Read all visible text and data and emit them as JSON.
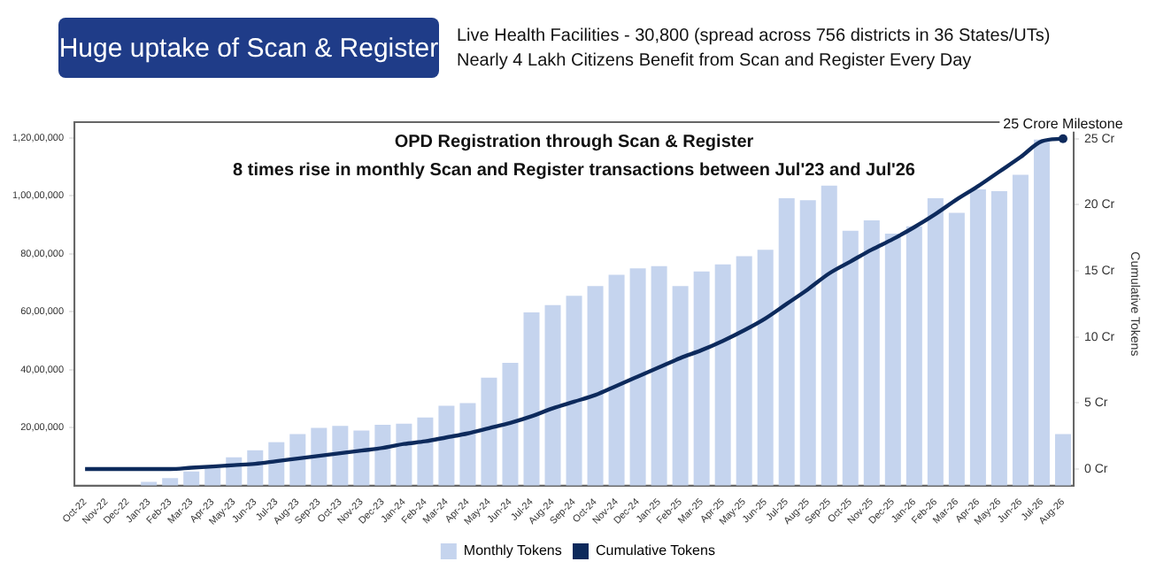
{
  "chart_data": {
    "type": "bar",
    "title": "OPD Registration through Scan & Register",
    "subtitle": "8 times rise in monthly Scan and Register transactions between Jul'23 and Jul'26",
    "annotations": [
      "Huge uptake of Scan & Register",
      "Live Health Facilities - 30,800 (spread across 756 districts in 36 States/UTs)",
      "Nearly 4 Lakh Citizens Benefit from Scan and Register Every Day",
      "25 Crore Milestone"
    ],
    "categories": [
      "Oct-22",
      "Nov-22",
      "Dec-22",
      "Jan-23",
      "Feb-23",
      "Mar-23",
      "Apr-23",
      "May-23",
      "Jun-23",
      "Jul-23",
      "Aug-23",
      "Sep-23",
      "Oct-23",
      "Nov-23",
      "Dec-23",
      "Jan-24",
      "Feb-24",
      "Mar-24",
      "Apr-24",
      "May-24",
      "Jun-24",
      "Jul-24",
      "Aug-24",
      "Sep-24",
      "Oct-24",
      "Nov-24",
      "Dec-24",
      "Jan-25",
      "Feb-25",
      "Mar-25",
      "Apr-25",
      "May-25",
      "Jun-25",
      "Jul-25",
      "Aug-25",
      "Sep-25",
      "Oct-25",
      "Nov-25",
      "Dec-25",
      "Jan-26",
      "Feb-26",
      "Mar-26",
      "Apr-26",
      "May-26",
      "Jun-26",
      "Jul-26",
      "Aug-26"
    ],
    "series": [
      {
        "name": "Monthly Tokens",
        "color": "#c5d4ee",
        "values": [
          0,
          0,
          null,
          130000,
          260000,
          490000,
          600000,
          980000,
          1220000,
          1500000,
          1780000,
          1990000,
          2060000,
          1900000,
          2100000,
          2140000,
          2350000,
          2760000,
          2850000,
          3730000,
          4240000,
          5980000,
          6230000,
          6550000,
          6890000,
          7280000,
          7500000,
          7580000,
          6890000,
          7390000,
          7640000,
          7920000,
          8140000,
          9920000,
          9850000,
          10360000,
          8800000,
          9160000,
          8700000,
          8950000,
          9920000,
          9420000,
          10230000,
          10170000,
          10730000,
          11950000,
          1780000
        ]
      },
      {
        "name": "Cumulative Tokens",
        "type": "line",
        "axis": "y2",
        "color": "#0d2a5c",
        "values": [
          0,
          0,
          0,
          0,
          0,
          0.1,
          0.2,
          0.3,
          0.4,
          0.6,
          0.8,
          1.0,
          1.2,
          1.4,
          1.6,
          1.9,
          2.1,
          2.4,
          2.7,
          3.1,
          3.5,
          4.0,
          4.6,
          5.1,
          5.6,
          6.3,
          7.0,
          7.7,
          8.4,
          9.0,
          9.7,
          10.5,
          11.4,
          12.5,
          13.6,
          14.8,
          15.7,
          16.6,
          17.4,
          18.3,
          19.3,
          20.4,
          21.4,
          22.5,
          23.6,
          24.8,
          25.0
        ]
      }
    ],
    "ylim": [
      0,
      12550000
    ],
    "yticks": [
      {
        "value": 2000000,
        "label": "20,00,000"
      },
      {
        "value": 4000000,
        "label": "40,00,000"
      },
      {
        "value": 6000000,
        "label": "60,00,000"
      },
      {
        "value": 8000000,
        "label": "80,00,000"
      },
      {
        "value": 10000000,
        "label": "1,00,00,000"
      },
      {
        "value": 12000000,
        "label": "1,20,00,000"
      }
    ],
    "y2lim": [
      -1.25,
      26.25
    ],
    "y2ticks": [
      {
        "value": 0,
        "label": "0 Cr"
      },
      {
        "value": 5,
        "label": "5 Cr"
      },
      {
        "value": 10,
        "label": "10 Cr"
      },
      {
        "value": 15,
        "label": "15 Cr"
      },
      {
        "value": 20,
        "label": "20 Cr"
      },
      {
        "value": 25,
        "label": "25 Cr"
      }
    ],
    "y2label": "Cumulative Tokens",
    "legend": "bottom",
    "grid": false,
    "marker": "none",
    "line_style": "solid"
  }
}
